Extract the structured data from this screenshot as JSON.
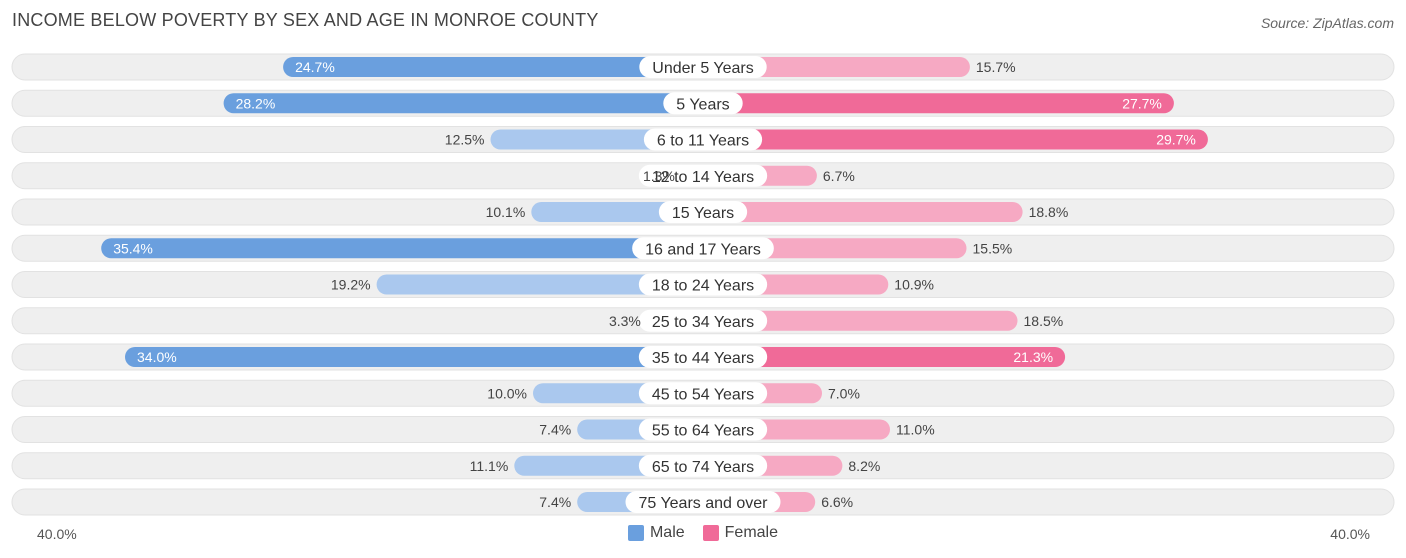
{
  "header": {
    "title": "INCOME BELOW POVERTY BY SEX AND AGE IN MONROE COUNTY",
    "source": "Source: ZipAtlas.com"
  },
  "axis": {
    "left_label": "40.0%",
    "right_label": "40.0%"
  },
  "legend": {
    "male_label": "Male",
    "female_label": "Female"
  },
  "colors": {
    "male_strong": "#6a9fde",
    "male_light": "#aac8ee",
    "female_strong": "#f06a98",
    "female_light": "#f6a9c3",
    "row_bg": "#efefef"
  },
  "chart_data": {
    "type": "bar",
    "orientation": "horizontal-diverging",
    "title": "INCOME BELOW POVERTY BY SEX AND AGE IN MONROE COUNTY",
    "xlim": [
      0,
      40
    ],
    "unit": "%",
    "categories": [
      "Under 5 Years",
      "5 Years",
      "6 to 11 Years",
      "12 to 14 Years",
      "15 Years",
      "16 and 17 Years",
      "18 to 24 Years",
      "25 to 34 Years",
      "35 to 44 Years",
      "45 to 54 Years",
      "55 to 64 Years",
      "65 to 74 Years",
      "75 Years and over"
    ],
    "series": [
      {
        "name": "Male",
        "values": [
          24.7,
          28.2,
          12.5,
          1.3,
          10.1,
          35.4,
          19.2,
          3.3,
          34.0,
          10.0,
          7.4,
          11.1,
          7.4
        ],
        "labels": [
          "24.7%",
          "28.2%",
          "12.5%",
          "1.3%",
          "10.1%",
          "35.4%",
          "19.2%",
          "3.3%",
          "34.0%",
          "10.0%",
          "7.4%",
          "11.1%",
          "7.4%"
        ]
      },
      {
        "name": "Female",
        "values": [
          15.7,
          27.7,
          29.7,
          6.7,
          18.8,
          15.5,
          10.9,
          18.5,
          21.3,
          7.0,
          11.0,
          8.2,
          6.6
        ],
        "labels": [
          "15.7%",
          "27.7%",
          "29.7%",
          "6.7%",
          "18.8%",
          "15.5%",
          "10.9%",
          "18.5%",
          "21.3%",
          "7.0%",
          "11.0%",
          "8.2%",
          "6.6%"
        ]
      }
    ]
  }
}
